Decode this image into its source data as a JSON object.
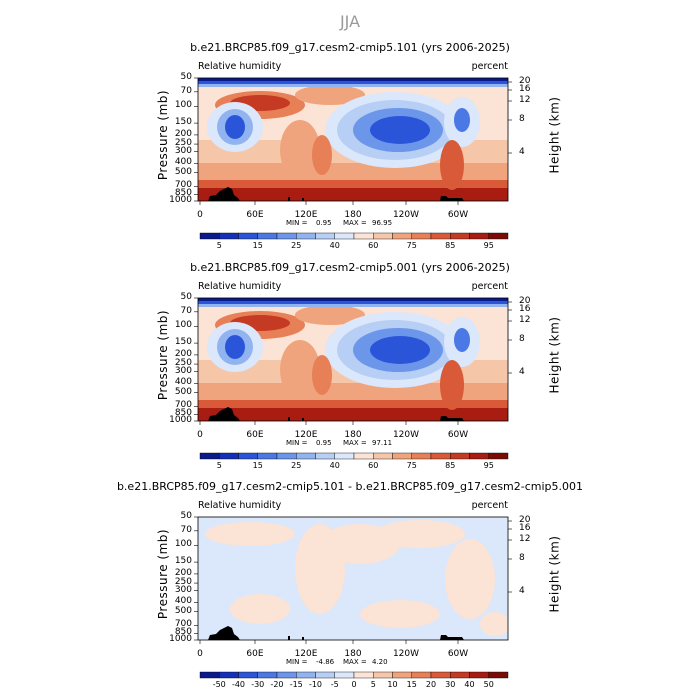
{
  "page": {
    "title": "JJA"
  },
  "axes": {
    "pressure_label": "Pressure (mb)",
    "height_label": "Height (km)",
    "pressure_ticks": [
      "50",
      "70",
      "100",
      "150",
      "200",
      "250",
      "300",
      "400",
      "500",
      "700",
      "850",
      "1000"
    ],
    "height_ticks": [
      "20",
      "16",
      "12",
      "8",
      "4"
    ],
    "x_ticks": [
      "0",
      "60E",
      "120E",
      "180",
      "120W",
      "60W"
    ]
  },
  "panels": [
    {
      "title": "b.e21.BRCP85.f09_g17.cesm2-cmip5.101 (yrs 2006-2025)",
      "variable": "Relative humidity",
      "units": "percent",
      "min_label": "MIN =",
      "min_value": "0.95",
      "max_label": "MAX =",
      "max_value": "96.95"
    },
    {
      "title": "b.e21.BRCP85.f09_g17.cesm2-cmip5.001 (yrs 2006-2025)",
      "variable": "Relative humidity",
      "units": "percent",
      "min_label": "MIN =",
      "min_value": "0.95",
      "max_label": "MAX =",
      "max_value": "97.11"
    },
    {
      "title": "b.e21.BRCP85.f09_g17.cesm2-cmip5.101 - b.e21.BRCP85.f09_g17.cesm2-cmip5.001",
      "variable": "Relative humidity",
      "units": "percent",
      "min_label": "MIN =",
      "min_value": "-4.86",
      "max_label": "MAX =",
      "max_value": "4.20"
    }
  ],
  "colorbars": {
    "field": {
      "tick_labels": [
        "5",
        "15",
        "25",
        "40",
        "60",
        "75",
        "85",
        "95"
      ],
      "colors": [
        "#0a1a8c",
        "#1530b8",
        "#2a55d8",
        "#4a78e4",
        "#6c96ea",
        "#91b4f0",
        "#b7cff5",
        "#dbe7fa",
        "#fbe3d5",
        "#f6c6a8",
        "#f0a47d",
        "#e77f57",
        "#d85a38",
        "#c43a22",
        "#a81c12",
        "#7a0c08"
      ]
    },
    "diff": {
      "tick_labels": [
        "-50",
        "-40",
        "-30",
        "-20",
        "-15",
        "-10",
        "-5",
        "0",
        "5",
        "10",
        "15",
        "20",
        "30",
        "40",
        "50"
      ],
      "colors": [
        "#0a1a8c",
        "#1530b8",
        "#2a55d8",
        "#4a78e4",
        "#6c96ea",
        "#91b4f0",
        "#b7cff5",
        "#dbe7fa",
        "#fbe3d5",
        "#f6c6a8",
        "#f0a47d",
        "#e77f57",
        "#d85a38",
        "#c43a22",
        "#a81c12",
        "#7a0c08"
      ]
    }
  },
  "chart_data": [
    {
      "type": "heatmap",
      "title": "b.e21.BRCP85.f09_g17.cesm2-cmip5.101 (yrs 2006-2025)",
      "variable": "Relative humidity",
      "units": "percent",
      "x_axis": [
        "0",
        "60E",
        "120E",
        "180",
        "120W",
        "60W"
      ],
      "y_axis": "Pressure (mb)",
      "y_range": [
        1000,
        50
      ],
      "min": 0.95,
      "max": 96.95
    },
    {
      "type": "heatmap",
      "title": "b.e21.BRCP85.f09_g17.cesm2-cmip5.001 (yrs 2006-2025)",
      "variable": "Relative humidity",
      "units": "percent",
      "x_axis": [
        "0",
        "60E",
        "120E",
        "180",
        "120W",
        "60W"
      ],
      "y_axis": "Pressure (mb)",
      "y_range": [
        1000,
        50
      ],
      "min": 0.95,
      "max": 97.11
    },
    {
      "type": "heatmap",
      "title": "b.e21.BRCP85.f09_g17.cesm2-cmip5.101 - b.e21.BRCP85.f09_g17.cesm2-cmip5.001",
      "variable": "Relative humidity",
      "units": "percent",
      "x_axis": [
        "0",
        "60E",
        "120E",
        "180",
        "120W",
        "60W"
      ],
      "y_axis": "Pressure (mb)",
      "y_range": [
        1000,
        50
      ],
      "min": -4.86,
      "max": 4.2
    }
  ]
}
